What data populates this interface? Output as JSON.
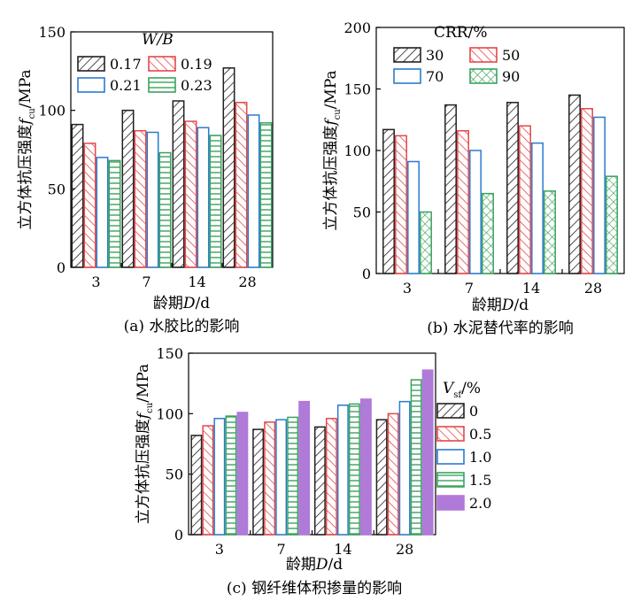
{
  "chart_data": [
    {
      "type": "bar",
      "caption": "(a) 水胶比的影响",
      "ylabel": "立方体抗压强度f_cu/MPa",
      "ylabel_main": "立方体抗压强度",
      "ylabel_sym": "f",
      "ylabel_sub": "cu",
      "ylabel_unit": "/MPa",
      "xlabel": "龄期D/d",
      "xlabel_main": "龄期",
      "xlabel_sym": "D",
      "xlabel_unit": "/d",
      "categories": [
        "3",
        "7",
        "14",
        "28"
      ],
      "ylim": [
        0,
        150
      ],
      "yticks": [
        "0",
        "50",
        "100",
        "150"
      ],
      "legend_title": "W/B",
      "legend_placement": "top",
      "series": [
        {
          "name": "0.17",
          "values": [
            91,
            100,
            106,
            127
          ]
        },
        {
          "name": "0.19",
          "values": [
            79,
            87,
            93,
            105
          ]
        },
        {
          "name": "0.21",
          "values": [
            70,
            86,
            89,
            97
          ]
        },
        {
          "name": "0.23",
          "values": [
            68,
            73,
            84,
            92
          ]
        }
      ]
    },
    {
      "type": "bar",
      "caption": "(b) 水泥替代率的影响",
      "ylabel": "立方体抗压强度f_cu/MPa",
      "ylabel_main": "立方体抗压强度",
      "ylabel_sym": "f",
      "ylabel_sub": "cu",
      "ylabel_unit": "/MPa",
      "xlabel": "龄期D/d",
      "xlabel_main": "龄期",
      "xlabel_sym": "D",
      "xlabel_unit": "/d",
      "categories": [
        "3",
        "7",
        "14",
        "28"
      ],
      "ylim": [
        0,
        200
      ],
      "yticks": [
        "0",
        "50",
        "100",
        "150",
        "200"
      ],
      "legend_title": "CRR/%",
      "legend_placement": "top",
      "series": [
        {
          "name": "30",
          "values": [
            117,
            137,
            139,
            145
          ]
        },
        {
          "name": "50",
          "values": [
            112,
            116,
            120,
            134
          ]
        },
        {
          "name": "70",
          "values": [
            91,
            100,
            106,
            127
          ]
        },
        {
          "name": "90",
          "values": [
            50,
            65,
            67,
            79
          ]
        }
      ]
    },
    {
      "type": "bar",
      "caption": "(c) 钢纤维体积掺量的影响",
      "ylabel": "立方体抗压强度f_cu/MPa",
      "ylabel_main": "立方体抗压强度",
      "ylabel_sym": "f",
      "ylabel_sub": "cu",
      "ylabel_unit": "/MPa",
      "xlabel": "龄期D/d",
      "xlabel_main": "龄期",
      "xlabel_sym": "D",
      "xlabel_unit": "/d",
      "categories": [
        "3",
        "7",
        "14",
        "28"
      ],
      "ylim": [
        0,
        150
      ],
      "yticks": [
        "0",
        "50",
        "100",
        "150"
      ],
      "legend_title": "V_sf/%",
      "legend_title_sym": "V",
      "legend_title_sub": "sf",
      "legend_title_unit": "/%",
      "legend_placement": "right",
      "series": [
        {
          "name": "0",
          "values": [
            82,
            87,
            89,
            95
          ]
        },
        {
          "name": "0.5",
          "values": [
            90,
            93,
            96,
            100
          ]
        },
        {
          "name": "1.0",
          "values": [
            96,
            95,
            107,
            110
          ]
        },
        {
          "name": "1.5",
          "values": [
            98,
            97,
            108,
            128
          ]
        },
        {
          "name": "2.0",
          "values": [
            101,
            110,
            112,
            136
          ]
        }
      ]
    }
  ],
  "styles": {
    "diag_black": {
      "color": "#231f20",
      "pattern": "diagonal-up"
    },
    "diag_red": {
      "color": "#e5484a",
      "pattern": "diagonal-down"
    },
    "blue_outline": {
      "color": "#2a7bd0",
      "pattern": "none"
    },
    "green_horizontal": {
      "color": "#3aa35c",
      "pattern": "horizontal"
    },
    "green_cross": {
      "color": "#3aa35c",
      "pattern": "crosshatch"
    },
    "purple_solid": {
      "color": "#b07ad8",
      "pattern": "solid"
    },
    "axis": "#000000"
  }
}
